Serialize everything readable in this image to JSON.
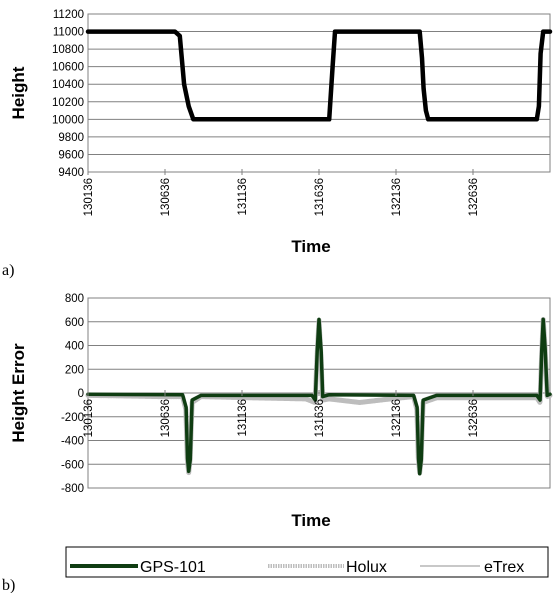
{
  "chart_data": [
    {
      "panel": "a)",
      "type": "line",
      "xlabel": "Time",
      "ylabel": "Height",
      "ylim": [
        9400,
        11200
      ],
      "yticks": [
        9400,
        9600,
        9800,
        10000,
        10200,
        10400,
        10600,
        10800,
        11000,
        11200
      ],
      "xlim": [
        130136,
        133136
      ],
      "xticks": [
        "130136",
        "130636",
        "131136",
        "131636",
        "132136",
        "132636"
      ],
      "grid": true,
      "series": [
        {
          "color": "#000000",
          "x": [
            130136,
            130700,
            130732,
            130760,
            130790,
            130820,
            131210,
            131702,
            131724,
            131740,
            132200,
            132290,
            132305,
            132315,
            132330,
            132345,
            132800,
            133050,
            133064,
            133075,
            133092,
            133136
          ],
          "y": [
            11000,
            11000,
            10950,
            10400,
            10150,
            10000,
            10000,
            10000,
            10600,
            11000,
            11000,
            11000,
            10700,
            10350,
            10100,
            10000,
            10000,
            10000,
            10150,
            10750,
            11000,
            11000
          ]
        }
      ]
    },
    {
      "panel": "b)",
      "type": "line",
      "xlabel": "Time",
      "ylabel": "Height Error",
      "ylim": [
        -800,
        800
      ],
      "yticks": [
        -800,
        -600,
        -400,
        -200,
        0,
        200,
        400,
        600,
        800
      ],
      "xlim": [
        130136,
        133136
      ],
      "xticks": [
        "130136",
        "130636",
        "131136",
        "131636",
        "132136",
        "132636"
      ],
      "grid": true,
      "legend_position": "bottom",
      "series": [
        {
          "name": "GPS-101",
          "color": "#0f3d12",
          "x": [
            130136,
            130750,
            130773,
            130782,
            130790,
            130800,
            130812,
            130870,
            131590,
            131612,
            131624,
            131636,
            131650,
            131660,
            131700,
            132250,
            132273,
            132282,
            132290,
            132300,
            132312,
            132400,
            133050,
            133072,
            133082,
            133092,
            133104,
            133118,
            133136
          ],
          "y": [
            -10,
            -15,
            -120,
            -550,
            -660,
            -560,
            -60,
            -20,
            -20,
            -60,
            350,
            620,
            350,
            -30,
            -15,
            -20,
            -120,
            -550,
            -680,
            -560,
            -60,
            -20,
            -20,
            -60,
            350,
            620,
            380,
            -20,
            -10
          ]
        },
        {
          "name": "Holux",
          "color": "#bdbdbd",
          "x": [
            130136,
            130400,
            130600,
            130750,
            130772,
            130781,
            130790,
            130799,
            130812,
            130870,
            131200,
            131550,
            131590,
            131610,
            131624,
            131636,
            131648,
            131660,
            131700,
            131900,
            132100,
            132250,
            132272,
            132281,
            132290,
            132299,
            132312,
            132400,
            132700,
            133050,
            133071,
            133082,
            133092,
            133104,
            133118,
            133136
          ],
          "y": [
            -20,
            -25,
            -30,
            -30,
            -140,
            -560,
            -670,
            -560,
            -80,
            -30,
            -40,
            -50,
            -70,
            -80,
            330,
            610,
            330,
            -60,
            -50,
            -80,
            -50,
            -30,
            -140,
            -550,
            -670,
            -560,
            -80,
            -40,
            -40,
            -40,
            -80,
            330,
            620,
            380,
            -30,
            -20
          ]
        },
        {
          "name": "eTrex",
          "color": "#c8c8c8",
          "x": [
            130136,
            130750,
            130774,
            130783,
            130791,
            130801,
            130814,
            130870,
            131590,
            131613,
            131625,
            131637,
            131651,
            131662,
            131700,
            132250,
            132274,
            132283,
            132291,
            132301,
            132314,
            132400,
            133050,
            133073,
            133083,
            133093,
            133105,
            133119,
            133136
          ],
          "y": [
            -5,
            -10,
            -110,
            -540,
            -650,
            -550,
            -50,
            -10,
            -10,
            -50,
            340,
            600,
            340,
            -20,
            -10,
            -10,
            -110,
            -540,
            -670,
            -550,
            -50,
            -10,
            -10,
            -50,
            340,
            610,
            370,
            -10,
            -5
          ]
        }
      ]
    }
  ]
}
